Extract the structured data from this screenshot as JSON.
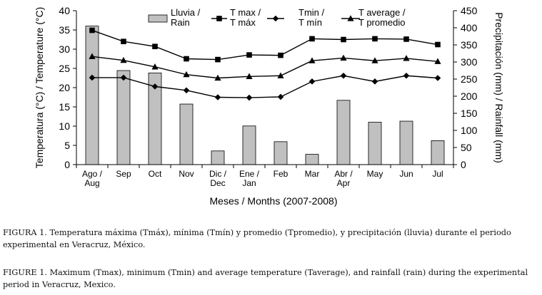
{
  "chart_data": {
    "type": "bar+line",
    "categories": [
      [
        "Ago /",
        "Aug"
      ],
      [
        "Sep"
      ],
      [
        "Oct"
      ],
      [
        "Nov"
      ],
      [
        "Dic /",
        "Dec"
      ],
      [
        "Ene /",
        "Jan"
      ],
      [
        "Feb"
      ],
      [
        "Mar"
      ],
      [
        "Abr /",
        "Apr"
      ],
      [
        "May"
      ],
      [
        "Jun"
      ],
      [
        "Jul"
      ]
    ],
    "xlabel": "Meses / Months (2007-2008)",
    "ylabel_left": "Temperatura (°C) / Temperature (°C)",
    "ylabel_right": "Precipitación (mm) / Rainfall (mm)",
    "ylim_left": [
      0,
      40
    ],
    "yticks_left": [
      0,
      5,
      10,
      15,
      20,
      25,
      30,
      35,
      40
    ],
    "ylim_right": [
      0,
      450
    ],
    "yticks_right": [
      0,
      50,
      100,
      150,
      200,
      250,
      300,
      350,
      400,
      450
    ],
    "grid": false,
    "legend_position": "top",
    "bars": {
      "name": [
        "Lluvia /",
        "Rain"
      ],
      "axis": "right",
      "color": "#c0c0c0",
      "values": [
        405,
        275,
        268,
        177,
        40,
        113,
        67,
        30,
        188,
        124,
        127,
        70
      ]
    },
    "series": [
      {
        "name": [
          "T max /",
          "T máx"
        ],
        "marker": "square",
        "axis": "left",
        "values": [
          34.9,
          32.0,
          30.7,
          27.5,
          27.3,
          28.5,
          28.4,
          32.7,
          32.5,
          32.7,
          32.6,
          31.2
        ]
      },
      {
        "name": [
          "Tmin /",
          "T mín"
        ],
        "marker": "diamond",
        "axis": "left",
        "values": [
          22.6,
          22.6,
          20.3,
          19.3,
          17.5,
          17.4,
          17.6,
          21.6,
          23.1,
          21.6,
          23.1,
          22.5
        ]
      },
      {
        "name": [
          "T average /",
          "T promedio"
        ],
        "marker": "triangle",
        "axis": "left",
        "values": [
          28.1,
          27.1,
          25.4,
          23.4,
          22.5,
          22.9,
          23.1,
          27.0,
          27.7,
          27.0,
          27.6,
          26.8
        ]
      }
    ]
  },
  "captions": {
    "es": {
      "label": "FIGURA 1.",
      "text": "Temperatura máxima (Tmáx), mínima (Tmín) y promedio (Tpromedio), y precipitación (lluvia) durante el periodo experimental en Veracruz, México."
    },
    "en": {
      "label": "FIGURE 1.",
      "text": "Maximum (Tmax), minimum (Tmin) and average temperature (Taverage), and rainfall (rain) during the experimental period in Veracruz, Mexico."
    }
  }
}
